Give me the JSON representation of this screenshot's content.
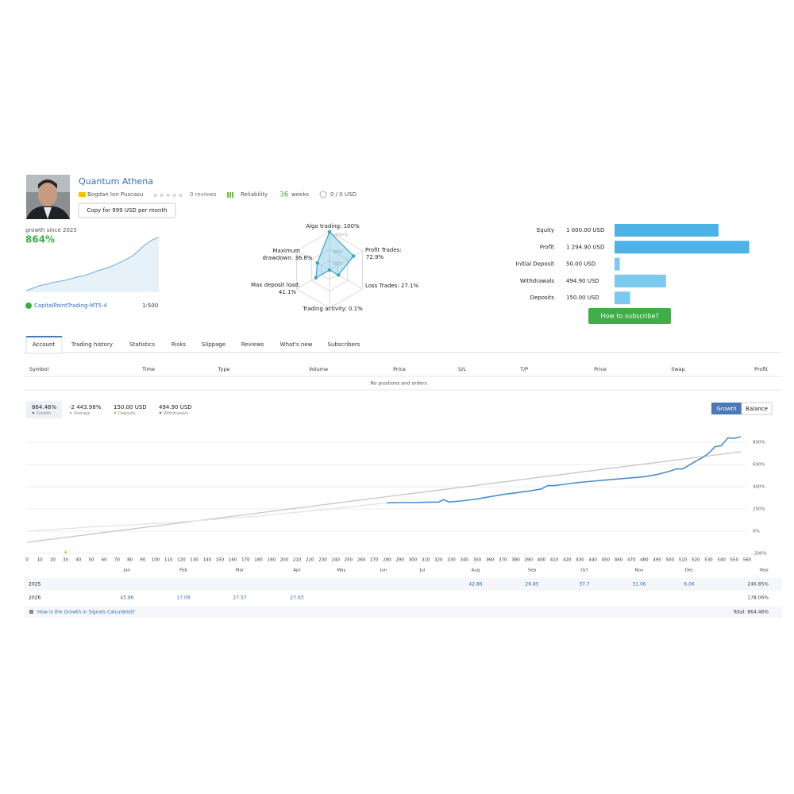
{
  "header": {
    "name": "Quantum Athena",
    "author": "Bogdan Ion Puscasu",
    "reviews": "0 reviews",
    "reliability": "Reliability",
    "weeks": "36",
    "weeks_label": "weeks",
    "funds": "0 / 0 USD",
    "copy_button": "Copy for 999 USD per month"
  },
  "growth_card": {
    "label": "growth since 2025",
    "value": "864%",
    "broker": "CapitalPointTrading-MT5-4",
    "leverage": "1:500",
    "sparkline": [
      0,
      40,
      80,
      100,
      130,
      150,
      170,
      200,
      230,
      250,
      290,
      330,
      360,
      400,
      450,
      500,
      560,
      650,
      750,
      820,
      864
    ]
  },
  "radar": {
    "rings": [
      "100+%",
      "50%",
      "20%"
    ],
    "axes": [
      {
        "label": [
          "Algo trading: 100%"
        ],
        "value": 100
      },
      {
        "label": [
          "Profit Trades:",
          "72.9%"
        ],
        "value": 72.9
      },
      {
        "label": [
          "Loss Trades: 27.1%"
        ],
        "value": 27.1
      },
      {
        "label": [
          "Trading activity: 0.1%"
        ],
        "value": 0.1
      },
      {
        "label": [
          "Max deposit load:",
          "41.1%"
        ],
        "value": 41.1
      },
      {
        "label": [
          "Maximum",
          "drawdown: 36.8%"
        ],
        "value": 36.8
      }
    ]
  },
  "stats": {
    "rows": [
      {
        "label": "Equity",
        "text": "1 000.00 USD",
        "value": 1000
      },
      {
        "label": "Profit",
        "text": "1 294.90 USD",
        "value": 1294.9
      },
      {
        "label": "Initial Deposit",
        "text": "50.00 USD",
        "value": 50
      },
      {
        "label": "Withdrawals",
        "text": "494.90 USD",
        "value": 494.9
      },
      {
        "label": "Deposits",
        "text": "150.00 USD",
        "value": 150
      }
    ],
    "button": "How to subscribe?"
  },
  "tabs": [
    "Account",
    "Trading history",
    "Statistics",
    "Risks",
    "Slippage",
    "Reviews",
    "What's new",
    "Subscribers"
  ],
  "active_tab": 0,
  "positions": {
    "columns": [
      "Symbol",
      "Time",
      "Type",
      "Volume",
      "Price",
      "S/L",
      "T/P",
      "Price",
      "Swap",
      "Profit"
    ],
    "empty": "No positions and orders"
  },
  "summary": [
    {
      "value": "864.46%",
      "label": "Growth"
    },
    {
      "value": "-2 443.98%",
      "label": "Average"
    },
    {
      "value": "150.00 USD",
      "label": "Deposits"
    },
    {
      "value": "494.90 USD",
      "label": "Withdrawals"
    }
  ],
  "toggle": [
    "Growth",
    "Balance"
  ],
  "chart_data": {
    "type": "line",
    "xlim": [
      0,
      560
    ],
    "xticks": [
      0,
      10,
      20,
      30,
      40,
      50,
      60,
      70,
      80,
      90,
      100,
      110,
      120,
      130,
      140,
      150,
      160,
      170,
      180,
      190,
      200,
      210,
      220,
      230,
      240,
      250,
      260,
      270,
      280,
      290,
      300,
      310,
      320,
      330,
      340,
      350,
      360,
      370,
      380,
      390,
      400,
      410,
      420,
      430,
      440,
      450,
      460,
      470,
      480,
      490,
      500,
      510,
      520,
      530,
      540,
      550,
      560
    ],
    "ylim": [
      -250,
      950
    ],
    "yticks": [
      {
        "value": -200,
        "label": "-200%"
      },
      {
        "value": 0,
        "label": "0%"
      },
      {
        "value": 200,
        "label": "200%"
      },
      {
        "value": 400,
        "label": "400%"
      },
      {
        "value": 600,
        "label": "600%"
      },
      {
        "value": 800,
        "label": "800%"
      }
    ],
    "grid": true,
    "series": [
      {
        "color": "#4a8fc9",
        "x": [
          280,
          290,
          300,
          310,
          320,
          324,
          328,
          340,
          350,
          360,
          370,
          380,
          390,
          400,
          405,
          410,
          420,
          430,
          440,
          450,
          460,
          470,
          480,
          490,
          500,
          505,
          510,
          520,
          525,
          530,
          535,
          540,
          545,
          550,
          555
        ],
        "values": [
          255,
          258,
          258,
          260,
          262,
          285,
          262,
          275,
          290,
          310,
          330,
          345,
          360,
          380,
          410,
          410,
          425,
          440,
          450,
          460,
          470,
          480,
          490,
          510,
          540,
          560,
          560,
          630,
          660,
          700,
          760,
          770,
          840,
          835,
          850
        ]
      },
      {
        "color": "#dfe5ec",
        "x": [
          0,
          20,
          40,
          60,
          80,
          100,
          120,
          140,
          160,
          180,
          200,
          220,
          240,
          260,
          280
        ],
        "values": [
          0,
          15,
          30,
          45,
          55,
          70,
          85,
          100,
          120,
          135,
          160,
          180,
          205,
          230,
          255
        ]
      },
      {
        "color": "#c6c6c6",
        "x": [
          0,
          555
        ],
        "values": [
          -100,
          714
        ]
      }
    ]
  },
  "monthly": {
    "columns": [
      "Jan",
      "Feb",
      "Mar",
      "Apr",
      "May",
      "Jun",
      "Jul",
      "Aug",
      "Sep",
      "Oct",
      "Nov",
      "Dec",
      "Year"
    ],
    "rows": [
      {
        "year": "2025",
        "cells": [
          null,
          null,
          null,
          null,
          null,
          null,
          null,
          "42.86",
          "26.85",
          "37.7",
          "31.06",
          "6.06",
          "246.85%"
        ]
      },
      {
        "year": "2026",
        "cells": [
          "45.86",
          "17.09",
          "27.57",
          "27.63",
          null,
          null,
          null,
          null,
          null,
          null,
          null,
          null,
          "178.06%"
        ]
      }
    ]
  },
  "footer": {
    "link": "How is the Growth in Signals Calculated?",
    "total": "Total: 864.46%"
  }
}
